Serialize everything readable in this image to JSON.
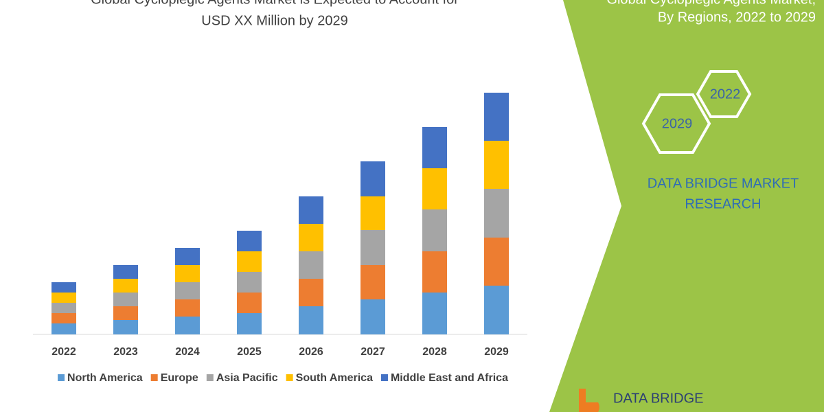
{
  "chart_data": {
    "type": "stacked_bar",
    "title": [
      "Global Cycloplegic Agents Market is Expected to Account for",
      "USD XX Million by 2029"
    ],
    "categories": [
      "2022",
      "2023",
      "2024",
      "2025",
      "2026",
      "2027",
      "2028",
      "2029"
    ],
    "series": [
      {
        "name": "North America",
        "color": "#5b9bd5",
        "values": [
          16,
          21,
          26,
          31,
          41,
          51,
          61,
          71
        ]
      },
      {
        "name": "Europe",
        "color": "#ed7d31",
        "values": [
          15,
          20,
          25,
          30,
          40,
          50,
          60,
          70
        ]
      },
      {
        "name": "Asia Pacific",
        "color": "#a5a5a5",
        "values": [
          15,
          20,
          25,
          30,
          40,
          51,
          61,
          71
        ]
      },
      {
        "name": "South America",
        "color": "#ffc000",
        "values": [
          15,
          20,
          25,
          30,
          40,
          49,
          60,
          70
        ]
      },
      {
        "name": "Middle East and Africa",
        "color": "#4472c4",
        "values": [
          15,
          20,
          25,
          30,
          40,
          51,
          60,
          70
        ]
      }
    ],
    "ylim": [
      0,
      360
    ],
    "legend": "bottom"
  },
  "panel": {
    "heading": [
      "Global Cycloplegic Agents Market,",
      "By Regions, 2022 to 2029"
    ],
    "badges": [
      "2022",
      "2029"
    ],
    "brand": [
      "DATA BRIDGE MARKET",
      "RESEARCH"
    ],
    "logo": "DATA BRIDGE"
  }
}
